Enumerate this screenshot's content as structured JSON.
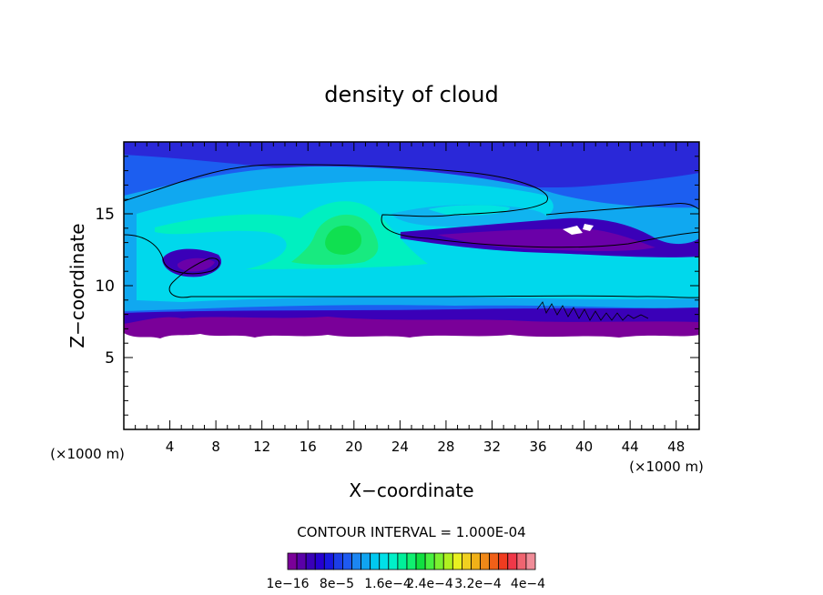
{
  "chart_data": {
    "type": "heatmap",
    "title": "density of cloud",
    "xlabel": "X−coordinate",
    "ylabel": "Z−coordinate",
    "x_unit_left": "(×1000 m)",
    "x_unit_right": "(×1000 m)",
    "xlim": [
      0,
      50
    ],
    "ylim": [
      0,
      20
    ],
    "x_ticks": [
      4,
      8,
      12,
      16,
      20,
      24,
      28,
      32,
      36,
      40,
      44,
      48
    ],
    "y_ticks": [
      5,
      10,
      15
    ],
    "contour_interval_text": "CONTOUR INTERVAL = 1.000E-04",
    "colorbar": {
      "labels": [
        "1e−16",
        "8e−5",
        "1.6e−4",
        "2.4e−4",
        "3.2e−4",
        "4e−4"
      ],
      "colors": [
        "#7a0099",
        "#5a00a8",
        "#3a00b8",
        "#2600d0",
        "#1818e0",
        "#1c3ee8",
        "#1e5af0",
        "#1c86f2",
        "#10a4f0",
        "#00c8f0",
        "#00e0e8",
        "#00f0c8",
        "#00f09a",
        "#10f070",
        "#10e040",
        "#48f040",
        "#7cf030",
        "#b0f020",
        "#e8f020",
        "#f0d020",
        "#f0b018",
        "#f08818",
        "#f06018",
        "#f03c20",
        "#f03848",
        "#f06470",
        "#f08c98"
      ]
    }
  }
}
